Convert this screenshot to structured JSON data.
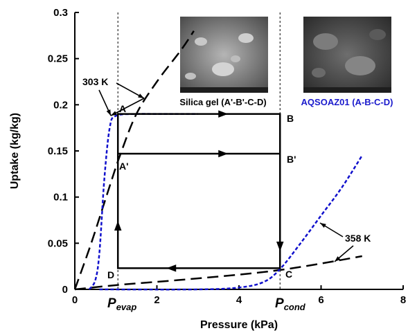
{
  "chart_data": {
    "type": "line",
    "xlabel": "Pressure (kPa)",
    "ylabel": "Uptake (kg/kg)",
    "xlim": [
      0,
      8
    ],
    "ylim": [
      0,
      0.3
    ],
    "x_ticks": [
      "0",
      "2",
      "4",
      "6",
      "8"
    ],
    "y_ticks": [
      "0",
      "0.05",
      "0.1",
      "0.15",
      "0.2",
      "0.25",
      "0.3"
    ],
    "grid": false,
    "series": [
      {
        "label": "Silica gel 303 K",
        "style": "long-dash",
        "color": "#000000",
        "points": [
          [
            0,
            0
          ],
          [
            0.4,
            0.05
          ],
          [
            0.8,
            0.105
          ],
          [
            1.1,
            0.145
          ],
          [
            1.5,
            0.19
          ],
          [
            2.0,
            0.225
          ],
          [
            2.6,
            0.26
          ],
          [
            2.9,
            0.28
          ]
        ]
      },
      {
        "label": "Silica gel 358 K",
        "style": "long-dash",
        "color": "#000000",
        "points": [
          [
            0,
            0
          ],
          [
            1.1,
            0.005
          ],
          [
            2.5,
            0.01
          ],
          [
            4,
            0.016
          ],
          [
            5,
            0.021
          ],
          [
            6,
            0.028
          ],
          [
            7,
            0.036
          ]
        ]
      },
      {
        "label": "AQSOAZ01 303 K",
        "style": "short-dash",
        "color": "#1010cc",
        "points": [
          [
            0.35,
            0
          ],
          [
            0.5,
            0.01
          ],
          [
            0.6,
            0.04
          ],
          [
            0.72,
            0.12
          ],
          [
            0.85,
            0.175
          ],
          [
            1.0,
            0.188
          ],
          [
            1.5,
            0.19
          ],
          [
            2.0,
            0.19
          ],
          [
            3.0,
            0.19
          ]
        ]
      },
      {
        "label": "AQSOAZ01 358 K",
        "style": "short-dash",
        "color": "#1010cc",
        "points": [
          [
            0.6,
            0
          ],
          [
            3.0,
            0.0
          ],
          [
            4.0,
            0.002
          ],
          [
            4.6,
            0.008
          ],
          [
            5.0,
            0.022
          ],
          [
            5.5,
            0.05
          ],
          [
            6.0,
            0.08
          ],
          [
            6.5,
            0.11
          ],
          [
            7.0,
            0.145
          ]
        ]
      }
    ],
    "cycles": [
      {
        "label": "AQSOAZ01 (A-B-C-D)",
        "points": {
          "A": [
            1.05,
            0.19
          ],
          "B": [
            5.0,
            0.19
          ],
          "C": [
            5.0,
            0.023
          ],
          "D": [
            1.05,
            0.023
          ]
        }
      },
      {
        "label": "Silica gel (A'-B'-C-D)",
        "points": {
          "A'": [
            1.05,
            0.147
          ],
          "B'": [
            5.0,
            0.147
          ]
        }
      }
    ],
    "reference_lines": [
      {
        "label": "Pevap",
        "x": 1.05
      },
      {
        "label": "Pcond",
        "x": 5.0
      }
    ],
    "annotations": [
      {
        "text": "303 K"
      },
      {
        "text": "358 K"
      },
      {
        "text": "Silica gel (A'-B'-C-D)"
      },
      {
        "text": "AQSOAZ01 (A-B-C-D)"
      }
    ]
  },
  "labels": {
    "A": "A",
    "B": "B",
    "A_prime": "A'",
    "B_prime": "B'",
    "C": "C",
    "D": "D",
    "p_evap_main": "P",
    "p_evap_sub": "evap",
    "p_cond_main": "P",
    "p_cond_sub": "cond",
    "temp_303": "303 K",
    "temp_358": "358 K",
    "silica_caption": "Silica gel (A'-B'-C-D)",
    "aqsoa_caption": "AQSOAZ01 (A-B-C-D)"
  },
  "colors": {
    "axis": "#000000",
    "silica": "#000000",
    "aqsoa": "#1010cc",
    "aqsoa_caption": "#1a1acc",
    "sem_dark": "#3a3a3a",
    "sem_light": "#8a8a8a"
  }
}
